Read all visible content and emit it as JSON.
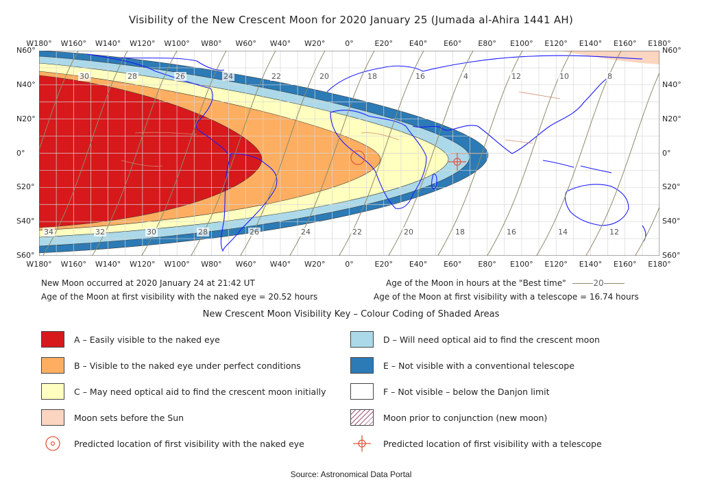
{
  "title": "Visibility of the New Crescent Moon for 2020 January 25 (Jumada al-Ahira 1441 AH)",
  "map": {
    "lon_labels": [
      "W180°",
      "W160°",
      "W140°",
      "W120°",
      "W100°",
      "W80°",
      "W60°",
      "W40°",
      "W20°",
      "0°",
      "E20°",
      "E40°",
      "E60°",
      "E80°",
      "E100°",
      "E120°",
      "E140°",
      "E160°",
      "E180°"
    ],
    "lat_labels": [
      "N60°",
      "N40°",
      "N20°",
      "0°",
      "S20°",
      "S40°",
      "S60°"
    ],
    "north_contour_labels": [
      "30",
      "28",
      "26",
      "24",
      "22",
      "20",
      "18",
      "16",
      "4",
      "12",
      "10",
      "8"
    ],
    "south_contour_labels": [
      "34",
      "32",
      "30",
      "28",
      "26",
      "24",
      "22",
      "20",
      "18",
      "16",
      "14",
      "12"
    ],
    "colors": {
      "zone_a": "#d7191c",
      "zone_b": "#fdae61",
      "zone_c": "#ffffbf",
      "zone_d": "#abd9e9",
      "zone_e": "#2c7bb6",
      "moonset": "#fcd5c0",
      "coast": "#1a1aff",
      "borders": "#d08a6a",
      "contour": "#8c8c6c",
      "grid": "#d6d6d6"
    }
  },
  "info": {
    "new_moon": "New Moon occurred at 2020 January 24 at 21:42 UT",
    "naked_eye_age": "Age of the Moon at first visibility with the naked eye = 20.52 hours",
    "best_time_legend": "Age of the Moon in hours at the \"Best time\"",
    "best_time_sample": "20",
    "telescope_age": "Age of the Moon at first visibility with a telescope = 16.74 hours"
  },
  "key": {
    "title": "New Crescent Moon Visibility Key – Colour Coding of Shaded Areas",
    "items": [
      {
        "label": "A – Easily visible to the naked eye",
        "icon": "swatch",
        "color": "#d7191c"
      },
      {
        "label": "B – Visible to the naked eye under perfect conditions",
        "icon": "swatch",
        "color": "#fdae61"
      },
      {
        "label": "C – May need optical aid to find the crescent moon initially",
        "icon": "swatch",
        "color": "#ffffbf"
      },
      {
        "label": "Moon sets before the Sun",
        "icon": "swatch",
        "color": "#fcd5c0"
      },
      {
        "label": "Predicted location of first visibility with the naked eye",
        "icon": "target-circle"
      },
      {
        "label": "D – Will need optical aid to find the crescent moon",
        "icon": "swatch",
        "color": "#abd9e9"
      },
      {
        "label": "E – Not visible with a conventional telescope",
        "icon": "swatch",
        "color": "#2c7bb6"
      },
      {
        "label": "F – Not visible – below the Danjon limit",
        "icon": "swatch",
        "color": "#ffffff"
      },
      {
        "label": "Moon prior to conjunction (new moon)",
        "icon": "hatched"
      },
      {
        "label": "Predicted location of first visibility with a telescope",
        "icon": "crosshair"
      }
    ]
  },
  "source": "Source: Astronomical Data Portal"
}
